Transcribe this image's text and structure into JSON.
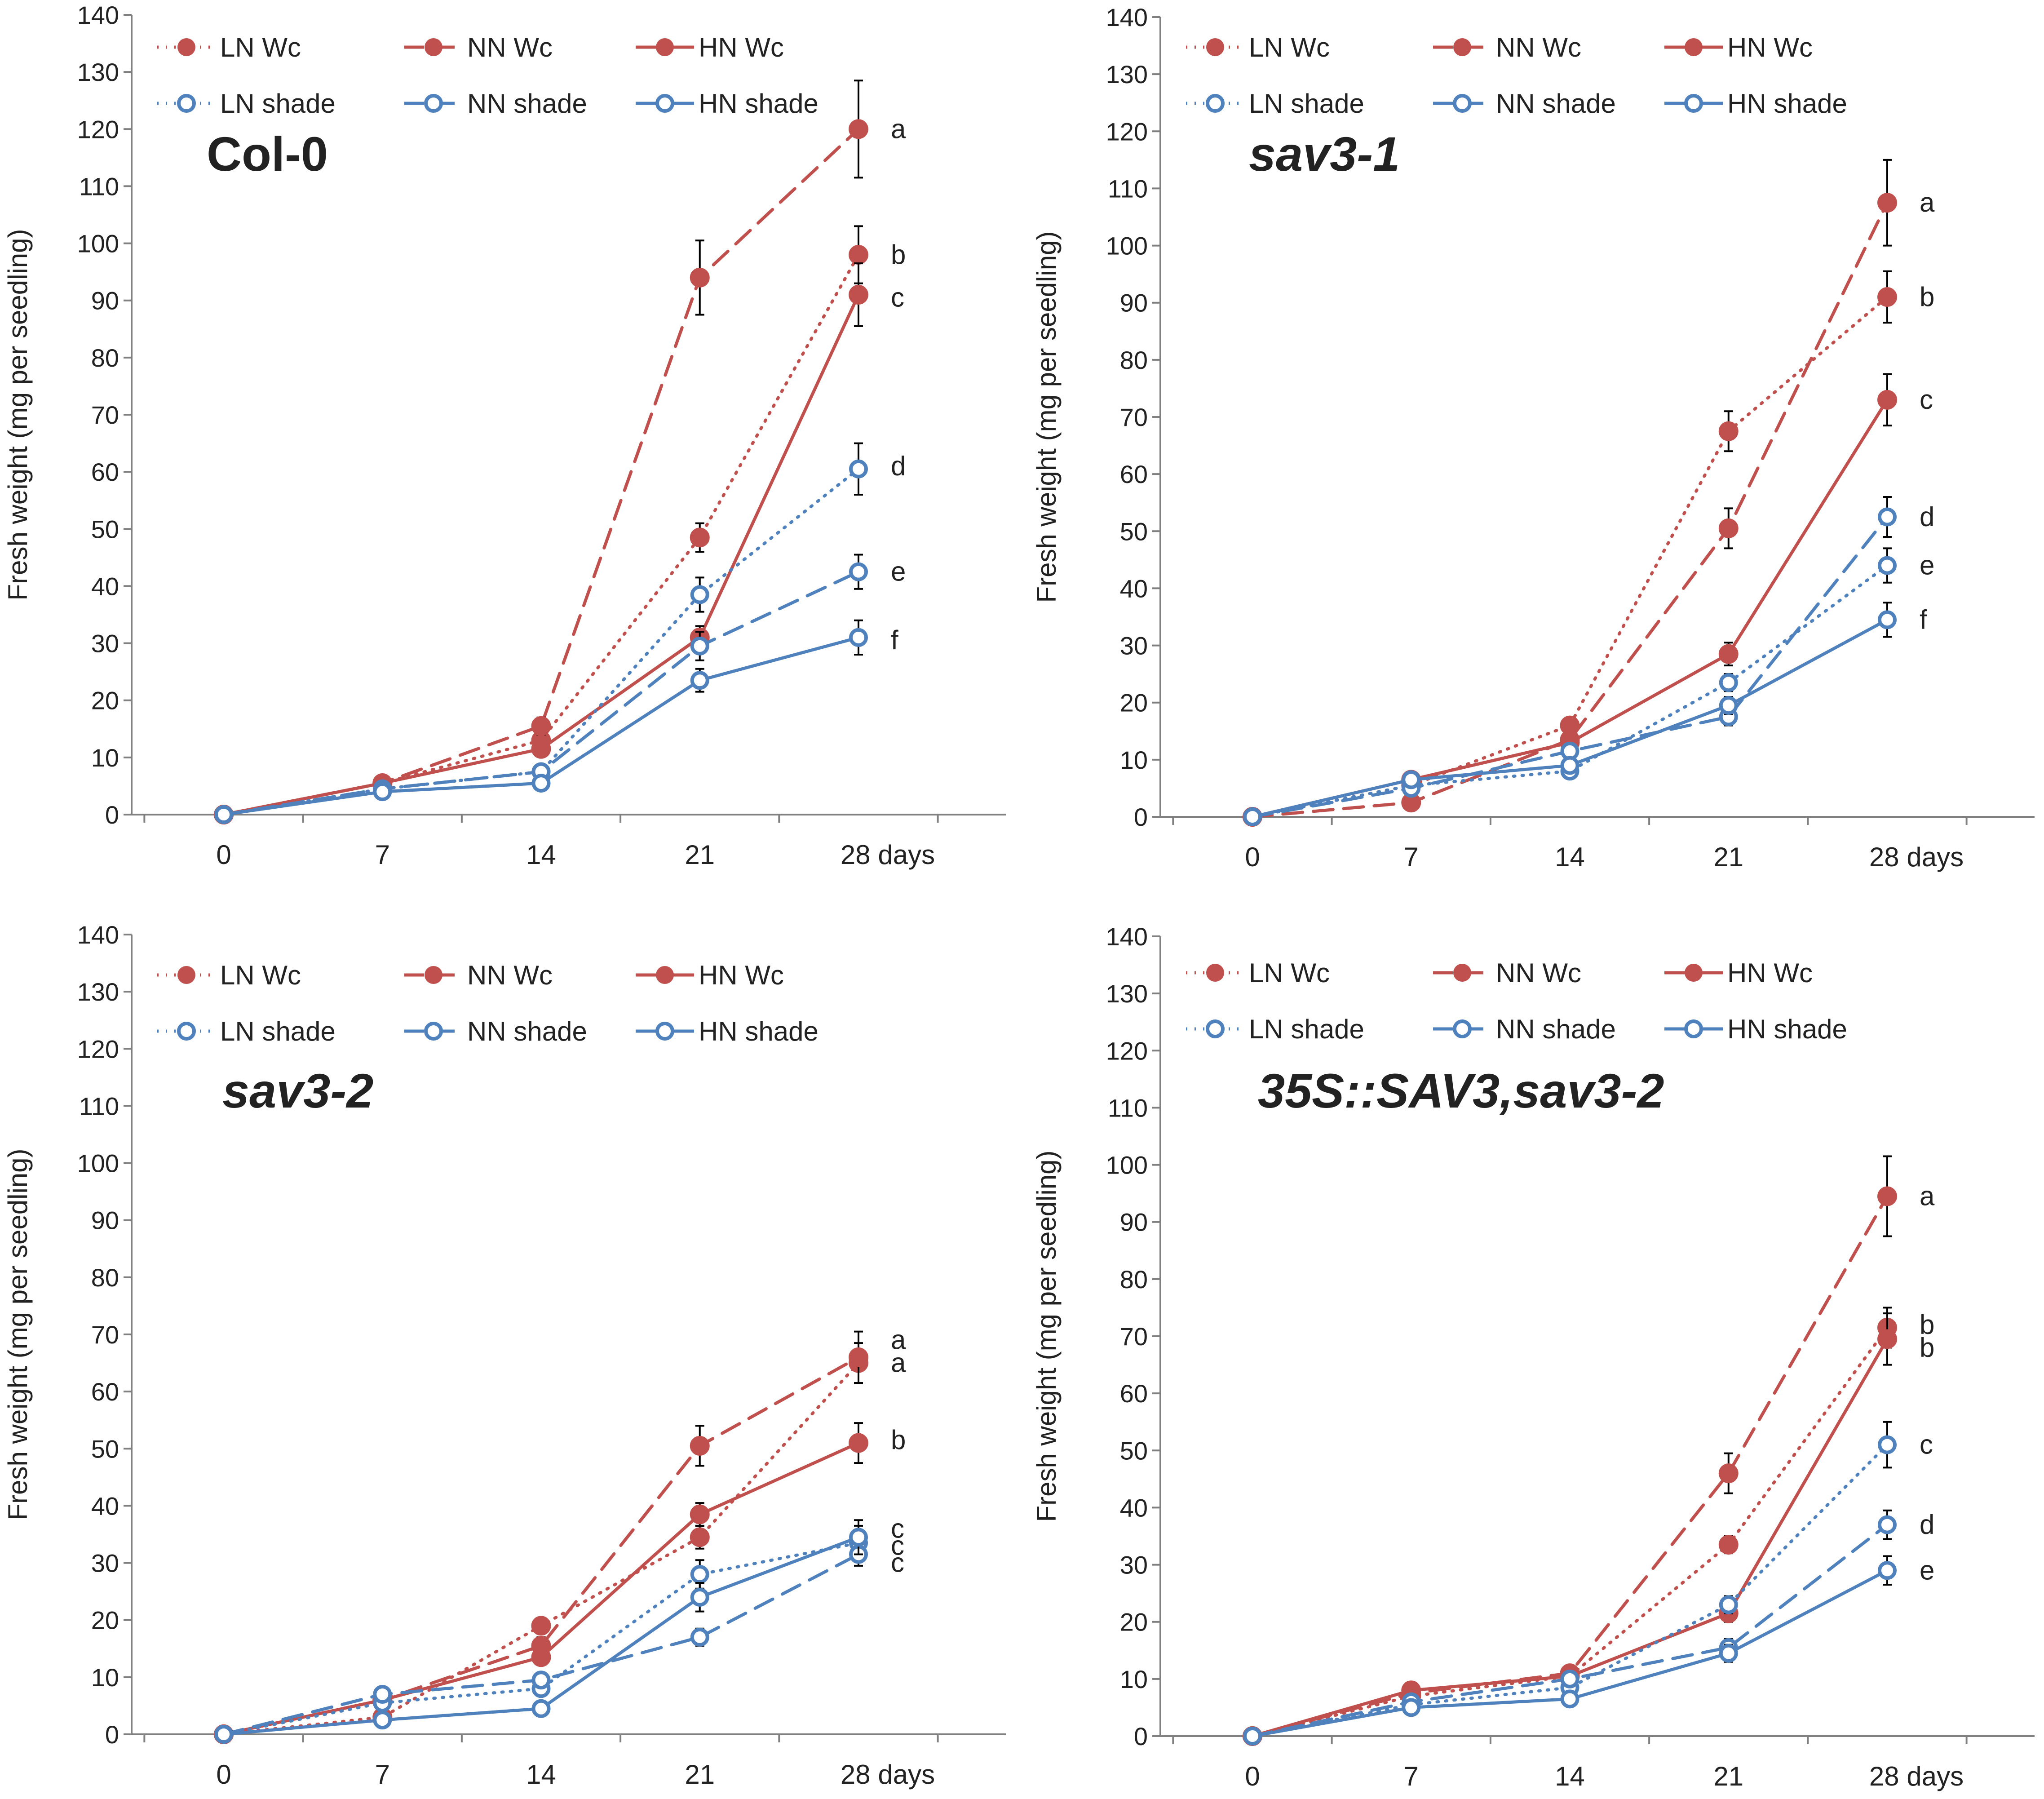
{
  "colors": {
    "wc": "#C0504D",
    "shade": "#4F81BD",
    "axis": "#333333",
    "text": "#222222"
  },
  "chart_data": [
    {
      "type": "line",
      "title": "Col-0",
      "title_italic": false,
      "ylabel": "Fresh weight (mg per seedling)",
      "xlabel_suffix": "days",
      "categories": [
        "0",
        "7",
        "14",
        "21",
        "28"
      ],
      "x": [
        0,
        7,
        14,
        21,
        28
      ],
      "ylim": [
        0,
        140
      ],
      "yticks": [
        0,
        10,
        20,
        30,
        40,
        50,
        60,
        70,
        80,
        90,
        100,
        110,
        120,
        130,
        140
      ],
      "series": [
        {
          "name": "LN Wc",
          "color": "wc",
          "dash": "dot",
          "marker": "filled",
          "values": [
            0,
            5.5,
            13,
            48.5,
            98
          ],
          "errors": [
            0,
            0.5,
            1.5,
            2.5,
            5
          ]
        },
        {
          "name": "NN Wc",
          "color": "wc",
          "dash": "long",
          "marker": "filled",
          "values": [
            0,
            5.5,
            15.5,
            94,
            120
          ],
          "errors": [
            0,
            0.5,
            1.5,
            6.5,
            8.5
          ]
        },
        {
          "name": "HN Wc",
          "color": "wc",
          "dash": "solid",
          "marker": "filled",
          "values": [
            0,
            5.5,
            11.5,
            31,
            91
          ],
          "errors": [
            0,
            0.5,
            1,
            2,
            5.5
          ]
        },
        {
          "name": "LN shade",
          "color": "shade",
          "dash": "dot",
          "marker": "open",
          "values": [
            0,
            4.5,
            7.5,
            38.5,
            60.5
          ],
          "errors": [
            0,
            0.5,
            1,
            3,
            4.5
          ]
        },
        {
          "name": "NN shade",
          "color": "shade",
          "dash": "long",
          "marker": "open",
          "values": [
            0,
            4.5,
            7.5,
            29.5,
            42.5
          ],
          "errors": [
            0,
            0.5,
            1,
            2.5,
            3
          ]
        },
        {
          "name": "HN shade",
          "color": "shade",
          "dash": "solid",
          "marker": "open",
          "values": [
            0,
            4,
            5.5,
            23.5,
            31
          ],
          "errors": [
            0,
            0.5,
            1,
            2,
            3
          ]
        }
      ],
      "annotations": [
        {
          "text": "a",
          "x": 28,
          "y": 120
        },
        {
          "text": "b",
          "x": 28,
          "y": 98
        },
        {
          "text": "c",
          "x": 28,
          "y": 90.5
        },
        {
          "text": "d",
          "x": 28,
          "y": 61
        },
        {
          "text": "e",
          "x": 28,
          "y": 42.5
        },
        {
          "text": "f",
          "x": 28,
          "y": 30.5
        }
      ]
    },
    {
      "type": "line",
      "title": "sav3-1",
      "title_italic": true,
      "ylabel": "Fresh weight (mg per seedling)",
      "xlabel_suffix": "days",
      "categories": [
        "0",
        "7",
        "14",
        "21",
        "28"
      ],
      "x": [
        0,
        7,
        14,
        21,
        28
      ],
      "ylim": [
        0,
        140
      ],
      "yticks": [
        0,
        10,
        20,
        30,
        40,
        50,
        60,
        70,
        80,
        90,
        100,
        110,
        120,
        130,
        140
      ],
      "series": [
        {
          "name": "LN Wc",
          "color": "wc",
          "dash": "dot",
          "marker": "filled",
          "values": [
            0,
            5.5,
            16,
            67.5,
            91
          ],
          "errors": [
            0,
            0.5,
            1,
            3.5,
            4.5
          ]
        },
        {
          "name": "NN Wc",
          "color": "wc",
          "dash": "long",
          "marker": "filled",
          "values": [
            0,
            2.5,
            13.5,
            50.5,
            107.5
          ],
          "errors": [
            0,
            0.5,
            1,
            3.5,
            7.5
          ]
        },
        {
          "name": "HN Wc",
          "color": "wc",
          "dash": "solid",
          "marker": "filled",
          "values": [
            0,
            6.5,
            13,
            28.5,
            73
          ],
          "errors": [
            0,
            0.5,
            1,
            2,
            4.5
          ]
        },
        {
          "name": "LN shade",
          "color": "shade",
          "dash": "dot",
          "marker": "open",
          "values": [
            0,
            5.5,
            8,
            23.5,
            44
          ],
          "errors": [
            0,
            0.5,
            1,
            1.5,
            3
          ]
        },
        {
          "name": "NN shade",
          "color": "shade",
          "dash": "long",
          "marker": "open",
          "values": [
            0,
            5,
            11.5,
            17.5,
            52.5
          ],
          "errors": [
            0,
            0.5,
            1,
            1.5,
            3.5
          ]
        },
        {
          "name": "HN shade",
          "color": "shade",
          "dash": "solid",
          "marker": "open",
          "values": [
            0,
            6.5,
            9,
            19.5,
            34.5
          ],
          "errors": [
            0,
            0.5,
            1,
            1.5,
            3
          ]
        }
      ],
      "annotations": [
        {
          "text": "a",
          "x": 28,
          "y": 107.5
        },
        {
          "text": "b",
          "x": 28,
          "y": 91
        },
        {
          "text": "c",
          "x": 28,
          "y": 73
        },
        {
          "text": "d",
          "x": 28,
          "y": 52.5
        },
        {
          "text": "e",
          "x": 28,
          "y": 44
        },
        {
          "text": "f",
          "x": 28,
          "y": 34.5
        }
      ]
    },
    {
      "type": "line",
      "title": "sav3-2",
      "title_italic": true,
      "ylabel": "Fresh weight (mg per seedling)",
      "xlabel_suffix": "days",
      "categories": [
        "0",
        "7",
        "14",
        "21",
        "28"
      ],
      "x": [
        0,
        7,
        14,
        21,
        28
      ],
      "ylim": [
        0,
        140
      ],
      "yticks": [
        0,
        10,
        20,
        30,
        40,
        50,
        60,
        70,
        80,
        90,
        100,
        110,
        120,
        130,
        140
      ],
      "series": [
        {
          "name": "LN Wc",
          "color": "wc",
          "dash": "dot",
          "marker": "filled",
          "values": [
            0,
            3,
            19,
            34.5,
            65
          ],
          "errors": [
            0,
            0.5,
            1,
            2,
            3.5
          ]
        },
        {
          "name": "NN Wc",
          "color": "wc",
          "dash": "long",
          "marker": "filled",
          "values": [
            0,
            6,
            15.5,
            50.5,
            66
          ],
          "errors": [
            0,
            0.5,
            1.5,
            3.5,
            4.5
          ]
        },
        {
          "name": "HN Wc",
          "color": "wc",
          "dash": "solid",
          "marker": "filled",
          "values": [
            0,
            6,
            13.5,
            38.5,
            51
          ],
          "errors": [
            0,
            0.5,
            1,
            2,
            3.5
          ]
        },
        {
          "name": "LN shade",
          "color": "shade",
          "dash": "dot",
          "marker": "open",
          "values": [
            0,
            5.5,
            8,
            28,
            33.5
          ],
          "errors": [
            0,
            0.5,
            1,
            2.5,
            3
          ]
        },
        {
          "name": "NN shade",
          "color": "shade",
          "dash": "long",
          "marker": "open",
          "values": [
            0,
            7,
            9.5,
            17,
            31.5
          ],
          "errors": [
            0,
            0.5,
            1,
            1.5,
            2
          ]
        },
        {
          "name": "HN shade",
          "color": "shade",
          "dash": "solid",
          "marker": "open",
          "values": [
            0,
            2.5,
            4.5,
            24,
            34.5
          ],
          "errors": [
            0,
            0.5,
            1,
            2.5,
            3
          ]
        }
      ],
      "annotations": [
        {
          "text": "a",
          "x": 28,
          "y": 69
        },
        {
          "text": "a",
          "x": 28,
          "y": 65
        },
        {
          "text": "b",
          "x": 28,
          "y": 51.5
        },
        {
          "text": "c",
          "x": 28,
          "y": 36
        },
        {
          "text": "c",
          "x": 28,
          "y": 33
        },
        {
          "text": "c",
          "x": 28,
          "y": 30
        }
      ]
    },
    {
      "type": "line",
      "title": "35S::SAV3,sav3-2",
      "title_italic": true,
      "ylabel": "Fresh weight (mg per seedling)",
      "xlabel_suffix": "days",
      "categories": [
        "0",
        "7",
        "14",
        "21",
        "28"
      ],
      "x": [
        0,
        7,
        14,
        21,
        28
      ],
      "ylim": [
        0,
        140
      ],
      "yticks": [
        0,
        10,
        20,
        30,
        40,
        50,
        60,
        70,
        80,
        90,
        100,
        110,
        120,
        130,
        140
      ],
      "series": [
        {
          "name": "LN Wc",
          "color": "wc",
          "dash": "dot",
          "marker": "filled",
          "values": [
            0,
            7,
            10.5,
            33.5,
            71.5
          ],
          "errors": [
            0,
            0.5,
            1,
            1.5,
            3.5
          ]
        },
        {
          "name": "NN Wc",
          "color": "wc",
          "dash": "long",
          "marker": "filled",
          "values": [
            0,
            7.5,
            11,
            46,
            94.5
          ],
          "errors": [
            0,
            0.5,
            1,
            3.5,
            7
          ]
        },
        {
          "name": "HN Wc",
          "color": "wc",
          "dash": "solid",
          "marker": "filled",
          "values": [
            0,
            8,
            10.5,
            21.5,
            69.5
          ],
          "errors": [
            0,
            0.5,
            1,
            1.5,
            4.5
          ]
        },
        {
          "name": "LN shade",
          "color": "shade",
          "dash": "dot",
          "marker": "open",
          "values": [
            0,
            5.5,
            8.5,
            23,
            51
          ],
          "errors": [
            0,
            0.5,
            1,
            1.5,
            4
          ]
        },
        {
          "name": "NN shade",
          "color": "shade",
          "dash": "long",
          "marker": "open",
          "values": [
            0,
            6,
            10,
            15.5,
            37
          ],
          "errors": [
            0,
            0.5,
            1,
            1.5,
            2.5
          ]
        },
        {
          "name": "HN shade",
          "color": "shade",
          "dash": "solid",
          "marker": "open",
          "values": [
            0,
            5,
            6.5,
            14.5,
            29
          ],
          "errors": [
            0,
            0.5,
            1,
            1.5,
            2.5
          ]
        }
      ],
      "annotations": [
        {
          "text": "a",
          "x": 28,
          "y": 94.5
        },
        {
          "text": "b",
          "x": 28,
          "y": 72
        },
        {
          "text": "b",
          "x": 28,
          "y": 68
        },
        {
          "text": "c",
          "x": 28,
          "y": 51
        },
        {
          "text": "d",
          "x": 28,
          "y": 37
        },
        {
          "text": "e",
          "x": 28,
          "y": 29
        }
      ]
    }
  ]
}
